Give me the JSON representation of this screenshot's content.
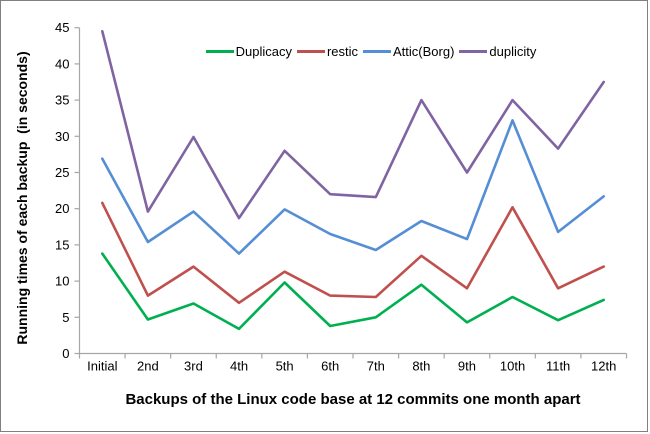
{
  "chart_data": {
    "type": "line",
    "categories": [
      "Initial",
      "2nd",
      "3rd",
      "4th",
      "5th",
      "6th",
      "7th",
      "8th",
      "9th",
      "10th",
      "11th",
      "12th"
    ],
    "series": [
      {
        "name": "Duplicacy",
        "color": "#00B050",
        "values": [
          13.8,
          4.7,
          6.9,
          3.4,
          9.8,
          3.8,
          5.0,
          9.5,
          4.3,
          7.8,
          4.6,
          7.4
        ]
      },
      {
        "name": "restic",
        "color": "#C0504D",
        "values": [
          20.8,
          8.0,
          12.0,
          7.0,
          11.3,
          8.0,
          7.8,
          13.5,
          9.0,
          20.2,
          9.0,
          12.0
        ]
      },
      {
        "name": "Attic(Borg)",
        "color": "#558ED5",
        "values": [
          26.9,
          15.4,
          19.6,
          13.8,
          19.9,
          16.5,
          14.3,
          18.3,
          15.8,
          32.2,
          16.8,
          21.7
        ]
      },
      {
        "name": "duplicity",
        "color": "#8064A2",
        "values": [
          44.5,
          19.6,
          29.9,
          18.7,
          28.0,
          22.0,
          21.6,
          35.0,
          25.0,
          35.0,
          28.3,
          37.5
        ]
      }
    ],
    "xlabel": "Backups of the Linux code base at 12 commits one month apart",
    "ylabel": "Running times of each backup  (in seconds)",
    "ylim": [
      0,
      45
    ],
    "ytick_step": 5,
    "legend_position": "top",
    "grid": false,
    "axis_color": "#a6a6a6",
    "text_color": "#000000",
    "background_color": "#ffffff",
    "border_color": "#7f7f7f"
  }
}
